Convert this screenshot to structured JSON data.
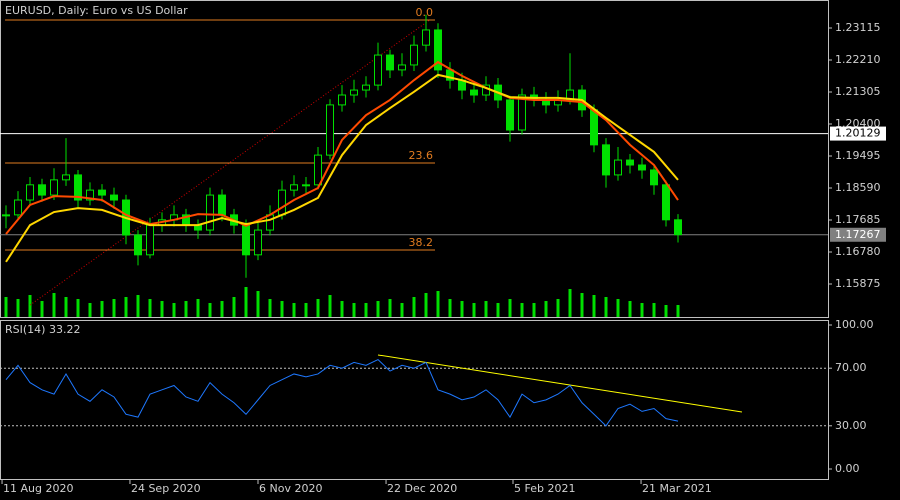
{
  "chart_data": [
    {
      "type": "candlestick",
      "title": "EURUSD, Daily:  Euro vs US Dollar",
      "color": "#00e000",
      "close": [
        1.1783,
        1.1825,
        1.1868,
        1.1839,
        1.1882,
        1.1896,
        1.1825,
        1.1853,
        1.1839,
        1.1825,
        1.1726,
        1.167,
        1.1754,
        1.1769,
        1.1783,
        1.1754,
        1.174,
        1.1839,
        1.1783,
        1.1754,
        1.167,
        1.174,
        1.1783,
        1.1853,
        1.1868,
        1.1868,
        1.1952,
        1.2094,
        1.2122,
        1.2136,
        1.215,
        1.2235,
        1.2193,
        1.2207,
        1.2263,
        1.2306,
        1.2193,
        1.2164,
        1.2136,
        1.2122,
        1.215,
        1.2108,
        1.2023,
        1.2122,
        1.2108,
        1.2094,
        1.2108,
        1.2136,
        1.208,
        1.1981,
        1.1896,
        1.1938,
        1.1924,
        1.191,
        1.1868,
        1.1769,
        1.1727
      ],
      "high": [
        1.181,
        1.185,
        1.189,
        1.1885,
        1.1915,
        1.2,
        1.191,
        1.1875,
        1.187,
        1.186,
        1.184,
        1.174,
        1.1775,
        1.179,
        1.181,
        1.18,
        1.177,
        1.186,
        1.1855,
        1.18,
        1.177,
        1.176,
        1.181,
        1.188,
        1.1895,
        1.189,
        1.1975,
        1.211,
        1.215,
        1.2165,
        1.2175,
        1.227,
        1.225,
        1.224,
        1.229,
        1.2349,
        1.2325,
        1.2215,
        1.2185,
        1.216,
        1.2175,
        1.217,
        1.212,
        1.214,
        1.2145,
        1.213,
        1.2135,
        1.224,
        1.215,
        1.2095,
        1.2,
        1.1975,
        1.1955,
        1.1945,
        1.1925,
        1.188,
        1.1785
      ],
      "low": [
        1.1745,
        1.177,
        1.181,
        1.182,
        1.1825,
        1.1865,
        1.1805,
        1.181,
        1.182,
        1.18,
        1.17,
        1.164,
        1.166,
        1.1735,
        1.175,
        1.1735,
        1.1715,
        1.1725,
        1.1765,
        1.173,
        1.1605,
        1.1655,
        1.1725,
        1.177,
        1.1835,
        1.1845,
        1.1855,
        1.194,
        1.2075,
        1.21,
        1.2115,
        1.2135,
        1.217,
        1.2175,
        1.219,
        1.2245,
        1.217,
        1.214,
        1.211,
        1.21,
        1.2105,
        1.2085,
        1.199,
        1.201,
        1.209,
        1.207,
        1.2075,
        1.2095,
        1.206,
        1.196,
        1.186,
        1.188,
        1.19,
        1.1885,
        1.184,
        1.175,
        1.1705
      ],
      "volume": {
        "color": "#00e000",
        "values": [
          20,
          18,
          22,
          16,
          24,
          20,
          18,
          14,
          16,
          18,
          20,
          22,
          18,
          16,
          14,
          16,
          18,
          14,
          16,
          20,
          30,
          26,
          18,
          16,
          14,
          14,
          18,
          22,
          16,
          14,
          14,
          16,
          18,
          14,
          20,
          24,
          26,
          18,
          16,
          14,
          16,
          14,
          18,
          14,
          14,
          16,
          18,
          28,
          24,
          22,
          20,
          18,
          16,
          14,
          14,
          12,
          12
        ]
      },
      "moving_averages": [
        {
          "color": "#ff4a00",
          "x": [
            0,
            2,
            4,
            6,
            8,
            10,
            12,
            14,
            16,
            18,
            20,
            22,
            24,
            26,
            28,
            30,
            32,
            34,
            36,
            38,
            40,
            42,
            44,
            46,
            48,
            50,
            52,
            54,
            56
          ],
          "values": [
            1.1729,
            1.1811,
            1.1836,
            1.1834,
            1.1825,
            1.1783,
            1.1757,
            1.1769,
            1.1785,
            1.1783,
            1.1752,
            1.1783,
            1.1825,
            1.1859,
            1.1995,
            1.2065,
            1.2108,
            1.2164,
            1.2215,
            1.2176,
            1.2142,
            1.2114,
            1.2108,
            1.2108,
            1.2102,
            1.2051,
            1.1981,
            1.1924,
            1.1825
          ]
        },
        {
          "color": "#ffd700",
          "x": [
            0,
            2,
            4,
            6,
            8,
            10,
            12,
            14,
            16,
            18,
            20,
            22,
            24,
            26,
            28,
            30,
            32,
            34,
            36,
            38,
            40,
            42,
            44,
            46,
            48,
            50,
            52,
            54,
            56
          ],
          "values": [
            1.165,
            1.1754,
            1.1791,
            1.1802,
            1.1797,
            1.1774,
            1.1754,
            1.1754,
            1.1754,
            1.1774,
            1.1757,
            1.1769,
            1.1797,
            1.1831,
            1.1952,
            1.2037,
            1.2085,
            1.2131,
            1.2179,
            1.2164,
            1.2142,
            1.2116,
            1.2114,
            1.2114,
            1.2108,
            1.2057,
            1.2009,
            1.1961,
            1.1882
          ]
        }
      ],
      "fibonacci": {
        "color": "#e07b20",
        "x": [
          -0.08,
          35.75
        ],
        "levels": [
          {
            "label": "0.0",
            "price": 1.23341
          },
          {
            "label": "23.6",
            "price": 1.19297
          },
          {
            "label": "38.2",
            "price": 1.16837
          }
        ],
        "trend": {
          "color": "#d00000",
          "x": [
            2,
            35.3
          ],
          "y": [
            1.1528,
            1.2334
          ]
        }
      },
      "price_lines": [
        {
          "value": 1.20129,
          "color": "#ffffff",
          "text_color": "#000000"
        },
        {
          "value": 1.17267,
          "color": "#808080",
          "text_color": "#ffffff"
        }
      ],
      "xlim": [
        -0.5,
        68.5
      ],
      "ylim": [
        1.14913,
        1.23907
      ],
      "yticks": [
        1.23115,
        {
          "value": 1.2221,
          "label": "1.22210"
        },
        1.21305,
        {
          "value": 1.204,
          "label": "1.20400"
        },
        1.19495,
        {
          "value": 1.1859,
          "label": "1.18590"
        },
        1.17685,
        {
          "value": 1.1678,
          "label": "1.16780"
        },
        1.15875
      ]
    },
    {
      "type": "line",
      "title": "RSI(14) 33.22",
      "color": "#1e78ff",
      "values": [
        62,
        72,
        60,
        55,
        52,
        66,
        52,
        47,
        55,
        50,
        38,
        36,
        52,
        55,
        58,
        50,
        47,
        60,
        52,
        46,
        38,
        48,
        58,
        62,
        66,
        64,
        66,
        72,
        70,
        74,
        72,
        76,
        68,
        72,
        70,
        74,
        55,
        52,
        48,
        50,
        55,
        48,
        36,
        52,
        46,
        48,
        52,
        58,
        46,
        38,
        30,
        42,
        45,
        40,
        42,
        35,
        33.22
      ],
      "levels": [
        30,
        70
      ],
      "trendline": {
        "color": "#ffff00",
        "x": [
          31,
          61.33
        ],
        "y": [
          79.2,
          39.6
        ]
      },
      "xlim": [
        -0.5,
        68.5
      ],
      "ylim": [
        0,
        100
      ],
      "yticks": [
        {
          "value": 100,
          "label": "100.00"
        },
        {
          "value": 70,
          "label": "70.00"
        },
        {
          "value": 30,
          "label": "30.00"
        },
        {
          "value": 0,
          "label": "0.00"
        }
      ],
      "xticks": [
        {
          "value": -0.33,
          "label": "11 Aug 2020"
        },
        {
          "value": 10.33,
          "label": "24 Sep 2020"
        },
        {
          "value": 21,
          "label": "6 Nov 2020"
        },
        {
          "value": 31.67,
          "label": "22 Dec 2020"
        },
        {
          "value": 42.25,
          "label": "5 Feb 2021"
        },
        {
          "value": 52.92,
          "label": "21 Mar 2021"
        }
      ]
    }
  ]
}
